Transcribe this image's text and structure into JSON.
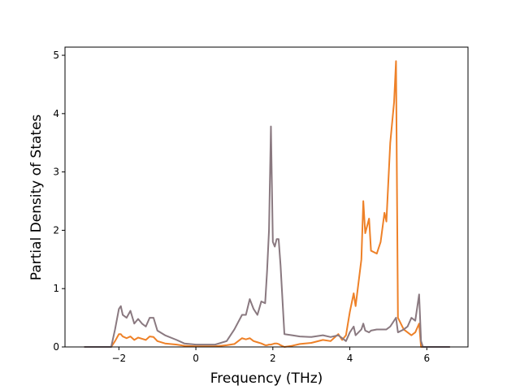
{
  "chart_data": {
    "type": "line",
    "xlabel": "Frequency (THz)",
    "ylabel": "Partial Density of States",
    "x": [
      -2.9,
      -2.2,
      -2.1,
      -2.0,
      -1.95,
      -1.9,
      -1.8,
      -1.7,
      -1.6,
      -1.5,
      -1.4,
      -1.3,
      -1.2,
      -1.1,
      -1.0,
      -0.8,
      -0.5,
      -0.3,
      0,
      0.5,
      0.8,
      1.0,
      1.2,
      1.3,
      1.4,
      1.5,
      1.6,
      1.7,
      1.8,
      1.85,
      1.9,
      1.95,
      2.0,
      2.05,
      2.1,
      2.15,
      2.2,
      2.3,
      2.5,
      2.7,
      3.0,
      3.3,
      3.5,
      3.7,
      3.8,
      3.9,
      4.0,
      4.1,
      4.15,
      4.3,
      4.35,
      4.4,
      4.5,
      4.55,
      4.7,
      4.8,
      4.9,
      4.95,
      5.05,
      5.15,
      5.2,
      5.25,
      5.4,
      5.5,
      5.6,
      5.7,
      5.8,
      5.85,
      5.9,
      6.6
    ],
    "series": [
      {
        "color": "#ee8128",
        "values": [
          0,
          0,
          0.1,
          0.22,
          0.22,
          0.18,
          0.15,
          0.18,
          0.12,
          0.16,
          0.14,
          0.12,
          0.18,
          0.17,
          0.1,
          0.06,
          0.04,
          0.02,
          0.01,
          0.01,
          0.03,
          0.05,
          0.15,
          0.13,
          0.15,
          0.1,
          0.08,
          0.06,
          0.03,
          0.03,
          0.04,
          0.04,
          0.05,
          0.06,
          0.06,
          0.05,
          0.03,
          0,
          0.02,
          0.05,
          0.07,
          0.12,
          0.1,
          0.22,
          0.12,
          0.2,
          0.6,
          0.92,
          0.7,
          1.5,
          2.5,
          1.95,
          2.2,
          1.65,
          1.6,
          1.8,
          2.3,
          2.15,
          3.5,
          4.2,
          4.9,
          0.5,
          0.3,
          0.25,
          0.2,
          0.25,
          0.4,
          0,
          0,
          0
        ]
      },
      {
        "color": "#8a7980",
        "values": [
          0,
          0,
          0.3,
          0.65,
          0.7,
          0.55,
          0.5,
          0.62,
          0.4,
          0.48,
          0.4,
          0.35,
          0.5,
          0.5,
          0.28,
          0.2,
          0.12,
          0.06,
          0.04,
          0.04,
          0.1,
          0.3,
          0.55,
          0.55,
          0.82,
          0.65,
          0.55,
          0.78,
          0.75,
          1.3,
          2.0,
          3.78,
          1.8,
          1.72,
          1.85,
          1.85,
          1.4,
          0.22,
          0.2,
          0.18,
          0.17,
          0.2,
          0.17,
          0.2,
          0.15,
          0.1,
          0.25,
          0.35,
          0.2,
          0.3,
          0.4,
          0.28,
          0.25,
          0.28,
          0.3,
          0.3,
          0.3,
          0.3,
          0.35,
          0.45,
          0.5,
          0.25,
          0.3,
          0.35,
          0.5,
          0.45,
          0.9,
          0.1,
          0,
          0
        ]
      }
    ],
    "xlim": [
      -3.4,
      7.07
    ],
    "ylim": [
      0,
      5.14
    ],
    "xticks": [
      {
        "value": -2,
        "label": "−2"
      },
      0,
      2,
      4,
      6
    ],
    "yticks": [
      0,
      1,
      2,
      3,
      4,
      5
    ]
  }
}
